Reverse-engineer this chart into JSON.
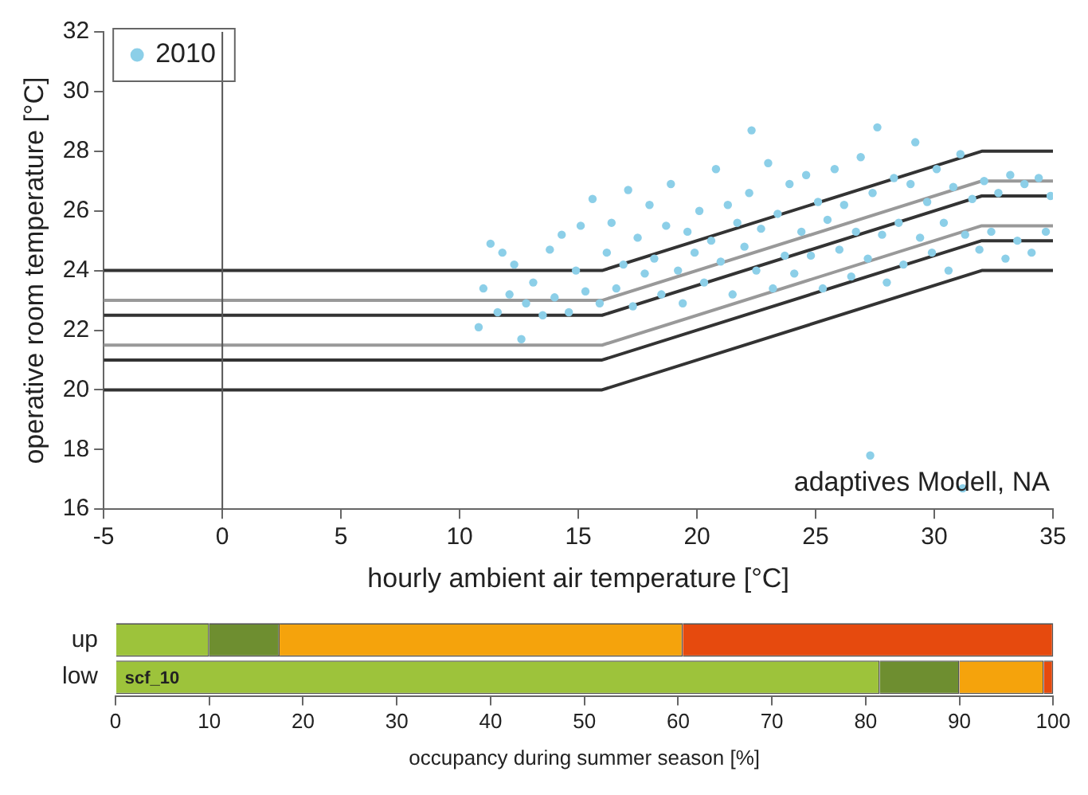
{
  "chart_data": [
    {
      "type": "scatter",
      "xlabel": "hourly ambient air temperature [°C]",
      "ylabel": "operative room temperature [°C]",
      "xlim": [
        -5,
        35
      ],
      "xticks": [
        -5,
        0,
        5,
        10,
        15,
        20,
        25,
        30,
        35
      ],
      "ylim": [
        16,
        32
      ],
      "yticks": [
        16,
        18,
        20,
        22,
        24,
        26,
        28,
        30,
        32
      ],
      "grid": false,
      "legend": "top left",
      "marker": "circle",
      "ref_lines": [
        {
          "axis": "x",
          "value": 0,
          "color": "#555555"
        }
      ],
      "annotations": [
        "adaptives Modell, NA"
      ],
      "series": [
        {
          "name": "2010",
          "color": "#8ccfe8",
          "x": [
            10.8,
            11.0,
            11.3,
            11.6,
            11.8,
            12.1,
            12.3,
            12.6,
            12.8,
            13.1,
            13.5,
            13.8,
            14.0,
            14.3,
            14.6,
            14.9,
            15.1,
            15.3,
            15.6,
            15.9,
            16.2,
            16.4,
            16.6,
            16.9,
            17.1,
            17.3,
            17.5,
            17.8,
            18.0,
            18.2,
            18.5,
            18.7,
            18.9,
            19.2,
            19.4,
            19.6,
            19.9,
            20.1,
            20.3,
            20.6,
            20.8,
            21.0,
            21.3,
            21.5,
            21.7,
            22.0,
            22.2,
            22.3,
            22.5,
            22.7,
            23.0,
            23.2,
            23.4,
            23.7,
            23.9,
            24.1,
            24.4,
            24.6,
            24.8,
            25.1,
            25.3,
            25.5,
            25.8,
            26.0,
            26.2,
            26.5,
            26.7,
            26.9,
            27.2,
            27.4,
            27.6,
            27.8,
            28.0,
            28.3,
            28.5,
            28.7,
            29.0,
            29.2,
            29.4,
            29.7,
            29.9,
            30.1,
            30.4,
            30.6,
            30.8,
            31.1,
            31.3,
            31.6,
            31.9,
            32.1,
            32.4,
            32.7,
            33.0,
            33.2,
            33.5,
            33.8,
            34.1,
            34.4,
            34.7,
            34.9,
            27.3,
            31.2
          ],
          "values": [
            22.1,
            23.4,
            24.9,
            22.6,
            24.6,
            23.2,
            24.2,
            21.7,
            22.9,
            23.6,
            22.5,
            24.7,
            23.1,
            25.2,
            22.6,
            24.0,
            25.5,
            23.3,
            26.4,
            22.9,
            24.6,
            25.6,
            23.4,
            24.2,
            26.7,
            22.8,
            25.1,
            23.9,
            26.2,
            24.4,
            23.2,
            25.5,
            26.9,
            24.0,
            22.9,
            25.3,
            24.6,
            26.0,
            23.6,
            25.0,
            27.4,
            24.3,
            26.2,
            23.2,
            25.6,
            24.8,
            26.6,
            28.7,
            24.0,
            25.4,
            27.6,
            23.4,
            25.9,
            24.5,
            26.9,
            23.9,
            25.3,
            27.2,
            24.5,
            26.3,
            23.4,
            25.7,
            27.4,
            24.7,
            26.2,
            23.8,
            25.3,
            27.8,
            24.4,
            26.6,
            28.8,
            25.2,
            23.6,
            27.1,
            25.6,
            24.2,
            26.9,
            28.3,
            25.1,
            26.3,
            24.6,
            27.4,
            25.6,
            24.0,
            26.8,
            27.9,
            25.2,
            26.4,
            24.7,
            27.0,
            25.3,
            26.6,
            24.4,
            27.2,
            25.0,
            26.9,
            24.6,
            27.1,
            25.3,
            26.5,
            17.8,
            16.7
          ]
        },
        {
          "type": "line",
          "color": "#333333",
          "marker": "none",
          "x": [
            -5,
            16,
            32,
            35
          ],
          "values": [
            24,
            24,
            28,
            28
          ]
        },
        {
          "type": "line",
          "color": "#999999",
          "marker": "none",
          "x": [
            -5,
            16,
            32,
            35
          ],
          "values": [
            23,
            23,
            27,
            27
          ]
        },
        {
          "type": "line",
          "color": "#333333",
          "marker": "none",
          "x": [
            -5,
            16,
            32,
            35
          ],
          "values": [
            22.5,
            22.5,
            26.5,
            26.5
          ]
        },
        {
          "type": "line",
          "color": "#999999",
          "marker": "none",
          "x": [
            -5,
            16,
            32,
            35
          ],
          "values": [
            21.5,
            21.5,
            25.5,
            25.5
          ]
        },
        {
          "type": "line",
          "color": "#333333",
          "marker": "none",
          "x": [
            -5,
            16,
            32,
            35
          ],
          "values": [
            21,
            21,
            25,
            25
          ]
        },
        {
          "type": "line",
          "color": "#333333",
          "marker": "none",
          "x": [
            -5,
            16,
            32,
            35
          ],
          "values": [
            20,
            20,
            24,
            24
          ]
        }
      ]
    },
    {
      "type": "bar",
      "orientation": "horizontal",
      "stacked": true,
      "xlabel": "occupancy during summer season [%]",
      "categories": [
        "up",
        "low"
      ],
      "xlim": [
        0,
        100
      ],
      "xticks": [
        0,
        10,
        20,
        30,
        40,
        50,
        60,
        70,
        80,
        90,
        100
      ],
      "grid": false,
      "annotations": [
        {
          "text": "scf_10",
          "x": 1,
          "y": "low"
        }
      ],
      "series": [
        {
          "color": "#9dc33b",
          "values": [
            10,
            81.5
          ]
        },
        {
          "color": "#6e8e30",
          "values": [
            7.5,
            8.5
          ]
        },
        {
          "color": "#f5a30c",
          "values": [
            43,
            9
          ]
        },
        {
          "color": "#e64a0e",
          "values": [
            39.5,
            1
          ]
        }
      ]
    }
  ]
}
